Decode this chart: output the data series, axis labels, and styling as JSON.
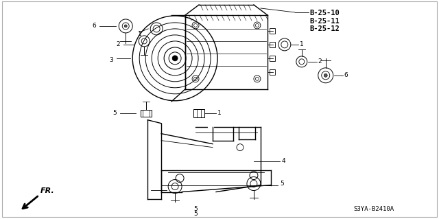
{
  "bg_color": "#ffffff",
  "line_color": "#000000",
  "part_ref_top": "B-25-10\nB-25-11\nB-25-12",
  "diagram_code": "S3YA–B2410A",
  "diagram_code2": "S3YA-B2410A",
  "fr_label": "FR.",
  "gray": "#888888",
  "light_gray": "#cccccc"
}
